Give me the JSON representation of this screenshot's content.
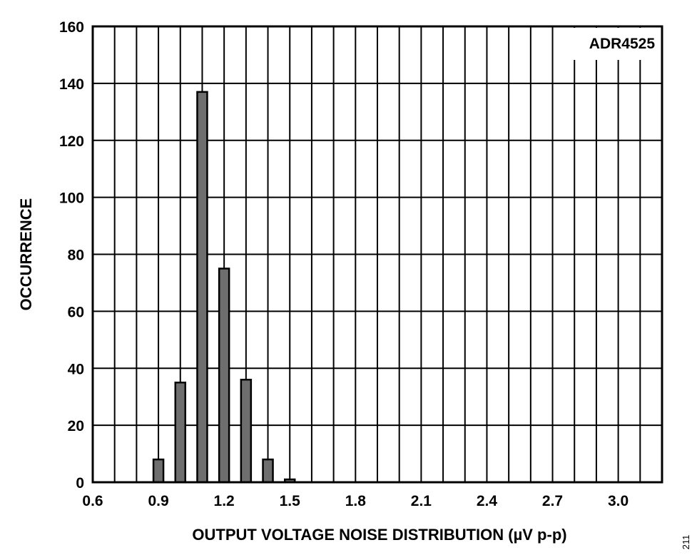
{
  "chart_data": {
    "type": "bar",
    "title": "",
    "xlabel": "OUTPUT VOLTAGE NOISE DISTRIBUTION (µV p-p)",
    "ylabel": "OCCURRENCE",
    "annotation": "ADR4525",
    "figure_code": "211",
    "xlim": [
      0.6,
      3.2
    ],
    "ylim": [
      0,
      160
    ],
    "x_ticks": [
      "0.6",
      "0.9",
      "1.2",
      "1.5",
      "1.8",
      "2.1",
      "2.4",
      "2.7",
      "3.0"
    ],
    "y_ticks": [
      "0",
      "20",
      "40",
      "60",
      "80",
      "100",
      "120",
      "140",
      "160"
    ],
    "x_tick_values": [
      0.6,
      0.9,
      1.2,
      1.5,
      1.8,
      2.1,
      2.4,
      2.7,
      3.0
    ],
    "y_tick_values": [
      0,
      20,
      40,
      60,
      80,
      100,
      120,
      140,
      160
    ],
    "x_grid_step": 0.1,
    "grid": true,
    "bar_color": "#6e6e6e",
    "series": [
      {
        "x": [
          0.9,
          1.0,
          1.1,
          1.2,
          1.3,
          1.4,
          1.5
        ],
        "values": [
          8,
          35,
          137,
          75,
          36,
          8,
          1
        ]
      }
    ]
  }
}
